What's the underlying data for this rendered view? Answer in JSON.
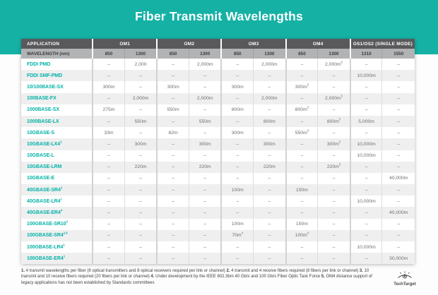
{
  "title": "Fiber Transmit Wavelengths",
  "colors": {
    "accent_teal": "#15b1a5",
    "header_dark": "#59595c",
    "header_gray": "#b1b3b5",
    "label_teal": "#00b1a6",
    "row_alt_gray": "#efeff0",
    "value_text": "#6d6e71"
  },
  "chart_data": {
    "type": "table",
    "title": "Fiber Transmit Wavelengths",
    "group_headers": [
      {
        "label": "APPLICATION",
        "span": 1
      },
      {
        "label": "OM1",
        "span": 2
      },
      {
        "label": "OM2",
        "span": 2
      },
      {
        "label": "OM3",
        "span": 2
      },
      {
        "label": "OM4",
        "span": 2
      },
      {
        "label": "OS1/OS2 (SINGLE MODE)",
        "span": 2
      }
    ],
    "subheader": [
      "WAVELENGTH (nm)",
      "850",
      "1300",
      "850",
      "1300",
      "850",
      "1300",
      "850",
      "1300",
      "1310",
      "1550"
    ],
    "rows": [
      [
        "FDDI PMD",
        "–",
        "2,000",
        "–",
        "2,000m",
        "–",
        "2,000m",
        "–",
        "2,000m^5",
        "–",
        "–"
      ],
      [
        "FDDI SMF-PMD",
        "–",
        "–",
        "–",
        "–",
        "–",
        "–",
        "–",
        "–",
        "10,000m",
        "–"
      ],
      [
        "10/100BASE-SX",
        "300m",
        "–",
        "300m",
        "–",
        "300m",
        "–",
        "300m^5",
        "–",
        "–",
        "–"
      ],
      [
        "100BASE-FX",
        "–",
        "2,000m",
        "–",
        "2,000m",
        "–",
        "2,000m",
        "–",
        "2,000m^5",
        "–",
        "–"
      ],
      [
        "1000BASE-SX",
        "275m",
        "–",
        "550m",
        "–",
        "800m",
        "–",
        "800m^5",
        "–",
        "–",
        "–"
      ],
      [
        "1000BASE-LX",
        "–",
        "550m",
        "–",
        "550m",
        "–",
        "800m",
        "–",
        "800m^5",
        "5,000m",
        "–"
      ],
      [
        "10GBASE-S",
        "33m",
        "–",
        "82m",
        "–",
        "300m",
        "–",
        "550m^5",
        "–",
        "–",
        "–"
      ],
      [
        "10GBASE-LX4^1",
        "–",
        "300m",
        "–",
        "300m",
        "–",
        "300m",
        "–",
        "300m^5",
        "10,000m",
        "–"
      ],
      [
        "10GBASE-L",
        "–",
        "–",
        "–",
        "–",
        "–",
        "–",
        "–",
        "–",
        "10,000m",
        "–"
      ],
      [
        "10GBASE-LRM",
        "–",
        "220m",
        "–",
        "220m",
        "–",
        "220m",
        "–",
        "220m^5",
        "–",
        "–"
      ],
      [
        "10GBASE-E",
        "–",
        "–",
        "–",
        "–",
        "–",
        "–",
        "–",
        "–",
        "–",
        "40,000m"
      ],
      [
        "40GBASE-SR4^2",
        "–",
        "–",
        "–",
        "–",
        "100m",
        "–",
        "150m",
        "–",
        "–",
        "–"
      ],
      [
        "40GBASE-LR4^1",
        "–",
        "–",
        "–",
        "–",
        "–",
        "–",
        "–",
        "–",
        "10,000m",
        "–"
      ],
      [
        "40GBASE-ER4^4",
        "–",
        "–",
        "–",
        "–",
        "–",
        "–",
        "–",
        "–",
        "–",
        "40,000m"
      ],
      [
        "100GBASE-SR10^3",
        "–",
        "–",
        "–",
        "–",
        "100m",
        "–",
        "150m",
        "–",
        "–",
        "–"
      ],
      [
        "100GBASE-SR4^2,4",
        "–",
        "–",
        "–",
        "–",
        "70m^4",
        "–",
        "100m^4",
        "–",
        "–",
        "–"
      ],
      [
        "100GBASE-LR4^1",
        "–",
        "–",
        "–",
        "–",
        "–",
        "–",
        "–",
        "–",
        "10,000m",
        "–"
      ],
      [
        "100GBASE-ER4^1",
        "–",
        "–",
        "–",
        "–",
        "–",
        "–",
        "–",
        "–",
        "–",
        "30,000m"
      ]
    ],
    "footnotes": [
      {
        "num": "1.",
        "text": "4 transmit wavelengths per fiber (8 optical transmitters and 8 optical receivers required per link or channel)"
      },
      {
        "num": "2.",
        "text": "4 transmit and 4 receive fibers required (8 fibers per link or channel)"
      },
      {
        "num": "3.",
        "text": "10 transmit and 10 receive fibers required (20 fibers per link or channel)"
      },
      {
        "num": "4.",
        "text": "Under development by the IEEE 802.3bm 40 Gb/s and 100 Gb/s Fiber Optic Task Force"
      },
      {
        "num": "5.",
        "text": "OM4 distance support of legacy applications has not been established by Standards committees"
      }
    ]
  },
  "branding": {
    "logo_text": "TechTarget",
    "logo_icon": "techtarget-eye-icon"
  }
}
